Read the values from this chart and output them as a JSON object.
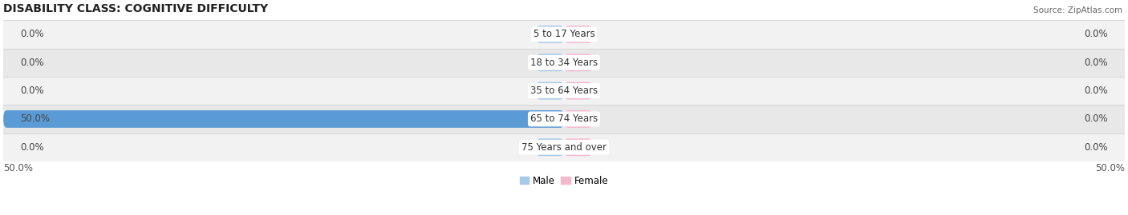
{
  "title": "DISABILITY CLASS: COGNITIVE DIFFICULTY",
  "source": "Source: ZipAtlas.com",
  "categories": [
    "5 to 17 Years",
    "18 to 34 Years",
    "35 to 64 Years",
    "65 to 74 Years",
    "75 Years and over"
  ],
  "male_values": [
    0.0,
    0.0,
    0.0,
    50.0,
    0.0
  ],
  "female_values": [
    0.0,
    0.0,
    0.0,
    0.0,
    0.0
  ],
  "male_color_light": "#a8c8e8",
  "male_color_active": "#5b9bd5",
  "female_color_light": "#f4b8cc",
  "female_color_active": "#f4b8cc",
  "row_colors": [
    "#f2f2f2",
    "#e8e8e8",
    "#f2f2f2",
    "#e8e8e8",
    "#f2f2f2"
  ],
  "xlim_left": -50.0,
  "xlim_right": 50.0,
  "x_left_label": "50.0%",
  "x_right_label": "50.0%",
  "title_fontsize": 10,
  "label_fontsize": 8.5,
  "cat_fontsize": 8.5
}
